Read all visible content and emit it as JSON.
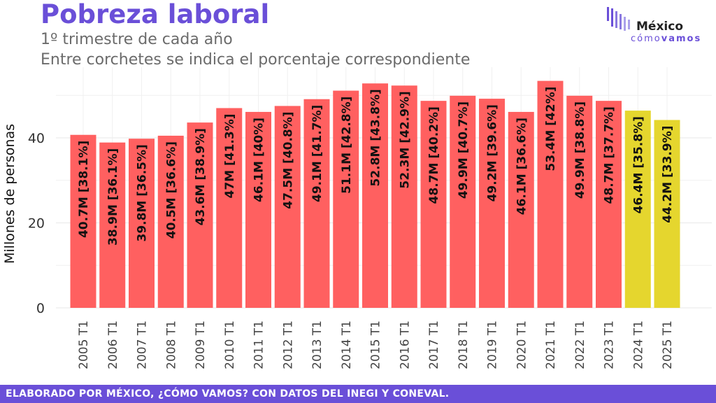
{
  "header": {
    "title": "Pobreza laboral",
    "subtitle": "1º trimestre de cada año",
    "subtitle2": "Entre corchetes se indica el porcentaje correspondiente"
  },
  "logo": {
    "top": "México",
    "bottom_light": "cómo",
    "bottom_bold": "vamos"
  },
  "footer": {
    "text": "ELABORADO POR MÉXICO, ¿CÓMO VAMOS? CON DATOS DEL INEGI Y CONEVAL."
  },
  "colors": {
    "bar_default": "#ff6060",
    "bar_recent": "#e5d62e",
    "accent": "#6a4fd8"
  },
  "chart_data": {
    "type": "bar",
    "title": "Pobreza laboral",
    "ylabel": "Millones de personas",
    "xlabel": "",
    "ylim": [
      0,
      58
    ],
    "yticks": [
      0,
      20,
      40
    ],
    "grid": true,
    "categories": [
      "2005 T1",
      "2006 T1",
      "2007 T1",
      "2008 T1",
      "2009 T1",
      "2010 T1",
      "2011 T1",
      "2012 T1",
      "2013 T1",
      "2014 T1",
      "2015 T1",
      "2016 T1",
      "2017 T1",
      "2018 T1",
      "2019 T1",
      "2020 T1",
      "2021 T1",
      "2022 T1",
      "2023 T1",
      "2024 T1",
      "2025 T1"
    ],
    "values": [
      40.7,
      38.9,
      39.8,
      40.5,
      43.6,
      47,
      46.1,
      47.5,
      49.1,
      51.1,
      52.8,
      52.3,
      48.7,
      49.9,
      49.2,
      46.1,
      53.4,
      49.9,
      48.7,
      46.4,
      44.2
    ],
    "labels": [
      "40.7M [38.1%]",
      "38.9M [36.1%]",
      "39.8M [36.5%]",
      "40.5M [36.6%]",
      "43.6M [38.9%]",
      "47M [41.3%]",
      "46.1M [40%]",
      "47.5M [40.8%]",
      "49.1M [41.7%]",
      "51.1M [42.8%]",
      "52.8M [43.8%]",
      "52.3M [42.9%]",
      "48.7M [40.2%]",
      "49.9M [40.7%]",
      "49.2M [39.6%]",
      "46.1M [36.6%]",
      "53.4M [42%]",
      "49.9M [38.8%]",
      "48.7M [37.7%]",
      "46.4M [35.8%]",
      "44.2M [33.9%]"
    ],
    "highlight_from_index": 19
  }
}
